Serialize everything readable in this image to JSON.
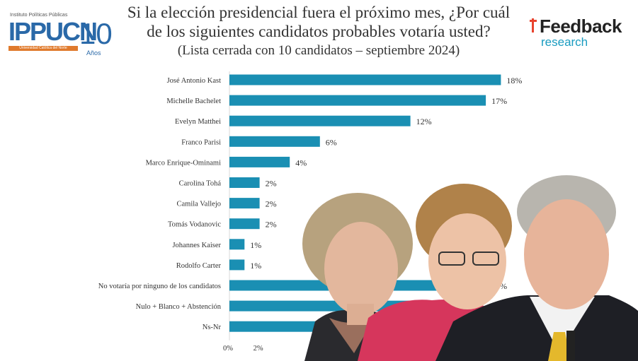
{
  "title": {
    "line1": "Si la elección presidencial fuera el próximo mes, ¿Por cuál",
    "line2": "de los siguientes candidatos probables votaría usted?",
    "line3": "(Lista cerrada con 10 candidatos – septiembre 2024)"
  },
  "logos": {
    "left_small": "Instituto Políticas Públicas",
    "left_main": "IPPUCN",
    "left_number": "10",
    "left_sub": "Universidad Católica del Norte",
    "left_years": "Años",
    "right_main": "Feedback",
    "right_sub": "research"
  },
  "colors": {
    "bar": "#1a8fb3",
    "text": "#333333",
    "accent": "#e8432e"
  },
  "chart_data": {
    "type": "bar",
    "orientation": "horizontal",
    "categories": [
      "José Antonio Kast",
      "Michelle Bachelet",
      "Evelyn Matthei",
      "Franco Parisi",
      "Marco Enrique-Ominami",
      "Carolina Tohá",
      "Camila Vallejo",
      "Tomás Vodanovic",
      "Johannes Kaiser",
      "Rodolfo Carter",
      "No votaría por ninguno de los candidatos",
      "Nulo + Blanco + Abstención",
      "Ns-Nr"
    ],
    "values": [
      18,
      17,
      12,
      6,
      4,
      2,
      2,
      2,
      1,
      1,
      17,
      12,
      10
    ],
    "data_labels": [
      "18%",
      "17%",
      "12%",
      "6%",
      "4%",
      "2%",
      "2%",
      "2%",
      "1%",
      "1%",
      "17%",
      "",
      ""
    ],
    "x_ticks": [
      "0%",
      "2%"
    ],
    "xlim": [
      0,
      20
    ],
    "unit": "%"
  },
  "photos": [
    {
      "name": "portrait-woman-short-hair"
    },
    {
      "name": "portrait-woman-glasses"
    },
    {
      "name": "portrait-man-speaking"
    }
  ]
}
